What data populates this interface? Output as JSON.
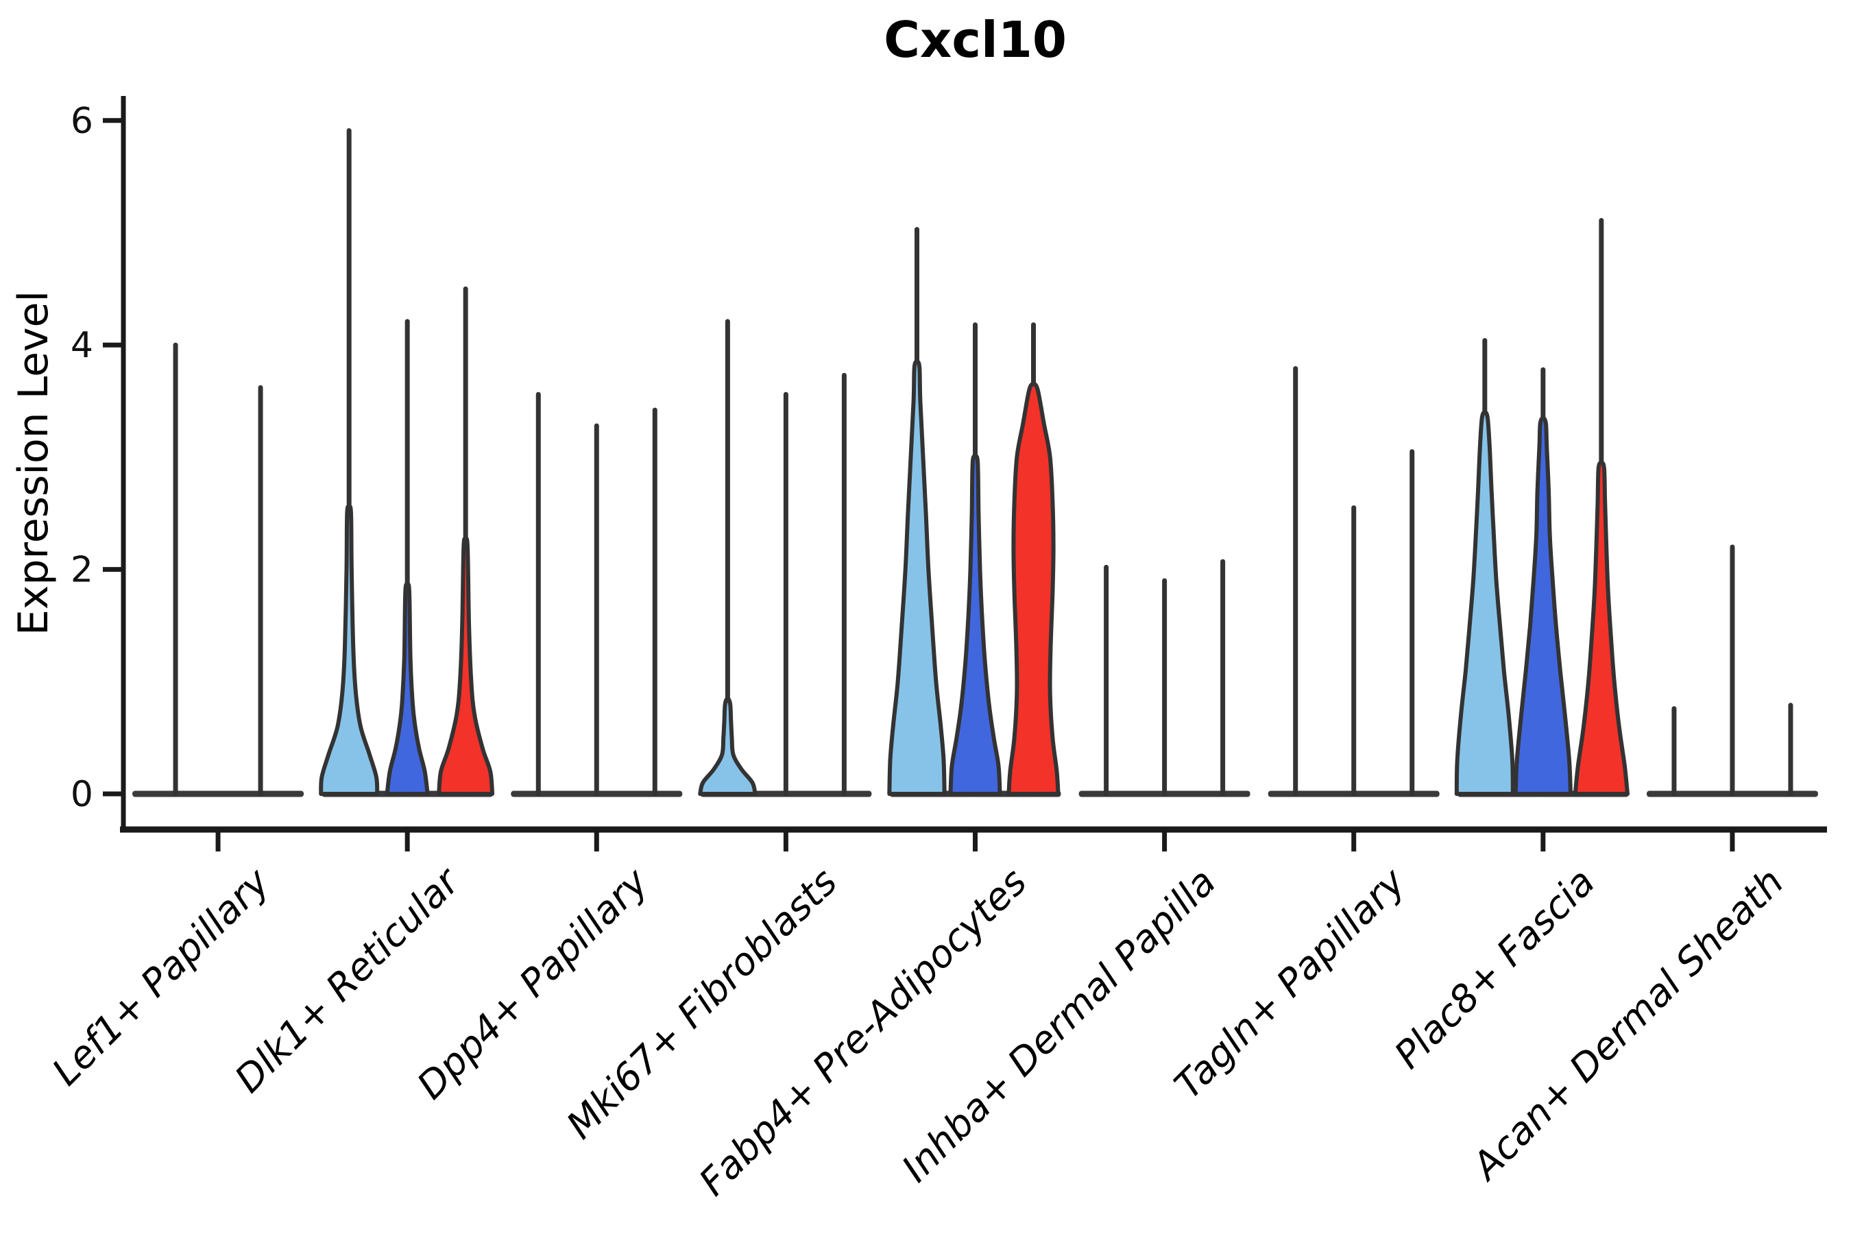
{
  "title": "Cxcl10",
  "ylabel": "Expression Level",
  "chart_data": {
    "type": "violin",
    "title": "Cxcl10",
    "xlabel": "",
    "ylabel": "Expression Level",
    "ylim": [
      0,
      6.3
    ],
    "yticks": [
      0,
      2,
      4,
      6
    ],
    "grid": false,
    "legend": "none",
    "outline_color": "#333333",
    "axis_color": "#1a1a1a",
    "series_colors": {
      "light_blue": "#87C3E8",
      "dark_blue": "#4167DE",
      "red": "#F3322A"
    },
    "categories": [
      "Lef1+ Papillary",
      "Dlk1+ Reticular",
      "Dpp4+ Papillary",
      "Mki67+ Fibroblasts",
      "Fabp4+ Pre-Adipocytes",
      "Inhba+ Dermal Papilla",
      "Tagln+ Papillary",
      "Plac8+ Fascia",
      "Acan+ Dermal Sheath"
    ],
    "groups": [
      {
        "category": "Lef1+ Papillary",
        "violins": [
          {
            "color": null,
            "max": 4.0,
            "body": []
          },
          {
            "color": null,
            "max": 3.62,
            "body": []
          }
        ]
      },
      {
        "category": "Dlk1+ Reticular",
        "violins": [
          {
            "color": "light_blue",
            "max": 5.91,
            "body": [
              [
                0,
                1.0
              ],
              [
                0.15,
                0.97
              ],
              [
                0.35,
                0.73
              ],
              [
                0.6,
                0.41
              ],
              [
                0.9,
                0.24
              ],
              [
                1.3,
                0.15
              ],
              [
                2.0,
                0.09
              ],
              [
                2.5,
                0.07
              ]
            ]
          },
          {
            "color": "dark_blue",
            "max": 4.21,
            "body": [
              [
                0,
                0.72
              ],
              [
                0.2,
                0.62
              ],
              [
                0.4,
                0.42
              ],
              [
                0.6,
                0.28
              ],
              [
                0.8,
                0.19
              ],
              [
                1.2,
                0.11
              ],
              [
                1.8,
                0.07
              ]
            ]
          },
          {
            "color": "red",
            "max": 4.5,
            "body": [
              [
                0,
                0.95
              ],
              [
                0.2,
                0.88
              ],
              [
                0.4,
                0.61
              ],
              [
                0.7,
                0.32
              ],
              [
                1.0,
                0.2
              ],
              [
                1.5,
                0.12
              ],
              [
                2.2,
                0.07
              ]
            ]
          }
        ]
      },
      {
        "category": "Dpp4+ Papillary",
        "violins": [
          {
            "color": null,
            "max": 3.56,
            "body": []
          },
          {
            "color": null,
            "max": 3.28,
            "body": []
          },
          {
            "color": null,
            "max": 3.42,
            "body": []
          }
        ]
      },
      {
        "category": "Mki67+ Fibroblasts",
        "violins": [
          {
            "color": "light_blue",
            "max": 4.21,
            "body": [
              [
                0,
                0.98
              ],
              [
                0.1,
                0.88
              ],
              [
                0.22,
                0.49
              ],
              [
                0.35,
                0.2
              ],
              [
                0.5,
                0.15
              ],
              [
                0.65,
                0.12
              ],
              [
                0.8,
                0.09
              ]
            ]
          },
          {
            "color": null,
            "max": 3.56,
            "body": []
          },
          {
            "color": null,
            "max": 3.73,
            "body": []
          }
        ]
      },
      {
        "category": "Fabp4+ Pre-Adipocytes",
        "violins": [
          {
            "color": "light_blue",
            "max": 5.03,
            "body": [
              [
                0,
                0.98
              ],
              [
                0.3,
                0.95
              ],
              [
                0.6,
                0.85
              ],
              [
                1.0,
                0.68
              ],
              [
                1.5,
                0.54
              ],
              [
                2.0,
                0.41
              ],
              [
                2.5,
                0.32
              ],
              [
                3.0,
                0.22
              ],
              [
                3.5,
                0.12
              ],
              [
                3.8,
                0.09
              ]
            ]
          },
          {
            "color": "dark_blue",
            "max": 4.18,
            "body": [
              [
                0,
                0.88
              ],
              [
                0.25,
                0.83
              ],
              [
                0.5,
                0.66
              ],
              [
                0.8,
                0.49
              ],
              [
                1.2,
                0.34
              ],
              [
                1.6,
                0.24
              ],
              [
                2.0,
                0.17
              ],
              [
                2.5,
                0.12
              ],
              [
                2.95,
                0.09
              ]
            ]
          },
          {
            "color": "red",
            "max": 4.18,
            "body": [
              [
                0,
                0.88
              ],
              [
                0.2,
                0.83
              ],
              [
                0.5,
                0.68
              ],
              [
                0.9,
                0.59
              ],
              [
                1.3,
                0.61
              ],
              [
                1.8,
                0.68
              ],
              [
                2.2,
                0.71
              ],
              [
                2.6,
                0.68
              ],
              [
                3.0,
                0.59
              ],
              [
                3.3,
                0.37
              ],
              [
                3.6,
                0.15
              ]
            ]
          }
        ]
      },
      {
        "category": "Inhba+ Dermal Papilla",
        "violins": [
          {
            "color": null,
            "max": 2.02,
            "body": []
          },
          {
            "color": null,
            "max": 1.9,
            "body": []
          },
          {
            "color": null,
            "max": 2.07,
            "body": []
          }
        ]
      },
      {
        "category": "Tagln+ Papillary",
        "violins": [
          {
            "color": null,
            "max": 3.79,
            "body": []
          },
          {
            "color": null,
            "max": 2.55,
            "body": []
          },
          {
            "color": null,
            "max": 3.05,
            "body": []
          }
        ]
      },
      {
        "category": "Plac8+ Fascia",
        "violins": [
          {
            "color": "light_blue",
            "max": 4.04,
            "body": [
              [
                0,
                1.0
              ],
              [
                0.3,
                0.98
              ],
              [
                0.7,
                0.85
              ],
              [
                1.1,
                0.68
              ],
              [
                1.5,
                0.54
              ],
              [
                1.9,
                0.41
              ],
              [
                2.3,
                0.32
              ],
              [
                2.7,
                0.24
              ],
              [
                3.1,
                0.17
              ],
              [
                3.35,
                0.1
              ]
            ]
          },
          {
            "color": "dark_blue",
            "max": 3.78,
            "body": [
              [
                0,
                0.98
              ],
              [
                0.3,
                0.93
              ],
              [
                0.7,
                0.78
              ],
              [
                1.1,
                0.61
              ],
              [
                1.5,
                0.46
              ],
              [
                1.9,
                0.34
              ],
              [
                2.3,
                0.24
              ],
              [
                2.7,
                0.2
              ],
              [
                3.1,
                0.13
              ],
              [
                3.3,
                0.1
              ]
            ]
          },
          {
            "color": "red",
            "max": 5.11,
            "body": [
              [
                0,
                0.93
              ],
              [
                0.25,
                0.83
              ],
              [
                0.6,
                0.63
              ],
              [
                1.0,
                0.46
              ],
              [
                1.4,
                0.34
              ],
              [
                1.8,
                0.24
              ],
              [
                2.2,
                0.18
              ],
              [
                2.6,
                0.13
              ],
              [
                2.9,
                0.1
              ]
            ]
          }
        ]
      },
      {
        "category": "Acan+ Dermal Sheath",
        "violins": [
          {
            "color": null,
            "max": 0.76,
            "body": []
          },
          {
            "color": null,
            "max": 2.2,
            "body": []
          },
          {
            "color": null,
            "max": 0.79,
            "body": []
          }
        ]
      }
    ]
  }
}
